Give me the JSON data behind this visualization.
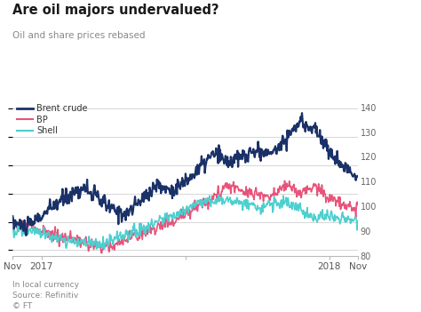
{
  "title": "Are oil majors undervalued?",
  "subtitle": "Oil and share prices rebased",
  "footnote1": "In local currency",
  "footnote2": "Source: Refinitiv",
  "footnote3": "© FT",
  "ylabel_right_ticks": [
    80,
    90,
    100,
    110,
    120,
    130,
    140
  ],
  "ylim": [
    80,
    148
  ],
  "plot_ylim_bottom": 88,
  "plot_ylim_top": 143,
  "xtick_positions": [
    0,
    2,
    12,
    22,
    24
  ],
  "xtick_labels": [
    "Nov",
    "2017",
    "",
    "2018",
    "Nov"
  ],
  "colors": {
    "brent": "#1a3168",
    "bp": "#e8537a",
    "shell": "#4dcfcf",
    "background": "#ffffff",
    "grid": "#d0d0d0",
    "title": "#1a1a1a",
    "subtitle": "#888888",
    "footnote": "#888888"
  },
  "line_widths": {
    "brent": 1.6,
    "bp": 1.2,
    "shell": 1.2
  },
  "legend_labels": [
    "Brent crude",
    "BP",
    "Shell"
  ]
}
